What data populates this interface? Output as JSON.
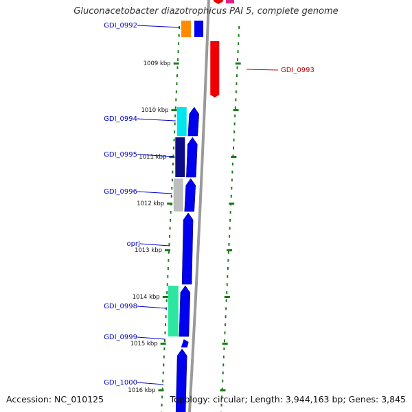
{
  "title": "Gluconacetobacter diazotrophicus PAI 5, complete genome",
  "footer": {
    "accession": "Accession: NC_010125",
    "topology": "Topology: circular; Length: 3,944,163 bp; Genes: 3,845"
  },
  "colors": {
    "background": "#ffffff",
    "backbone": "#9a9a9a",
    "tick": "#1a7a1a",
    "gene_label": "#0000cc",
    "gene_label_reverse": "#cc0000",
    "cds_forward": "#0000ee",
    "cds_reverse": "#ee0000"
  },
  "kbp_ticks": [
    {
      "label": "1009 kbp"
    },
    {
      "label": "1010 kbp"
    },
    {
      "label": "1011 kbp"
    },
    {
      "label": "1012 kbp"
    },
    {
      "label": "1013 kbp"
    },
    {
      "label": "1014 kbp"
    },
    {
      "label": "1015 kbp"
    },
    {
      "label": "1016 kbp"
    }
  ],
  "genes": [
    {
      "label": "GDI_0992",
      "strand": "forward",
      "cog_color": "#ff8c00"
    },
    {
      "label": "GDI_0993",
      "strand": "reverse",
      "cog_color": ""
    },
    {
      "label": "GDI_0994",
      "strand": "forward",
      "cog_color": "#00e5ee"
    },
    {
      "label": "GDI_0995",
      "strand": "forward",
      "cog_color": "#0c0c8a"
    },
    {
      "label": "GDI_0996",
      "strand": "forward",
      "cog_color": "#bdbdbd"
    },
    {
      "label": "oprJ",
      "strand": "forward",
      "cog_color": ""
    },
    {
      "label": "GDI_0998",
      "strand": "forward",
      "cog_color": "#2fe6a0"
    },
    {
      "label": "GDI_0999",
      "strand": "forward",
      "cog_color": ""
    },
    {
      "label": "GDI_1000",
      "strand": "forward",
      "cog_color": ""
    }
  ]
}
